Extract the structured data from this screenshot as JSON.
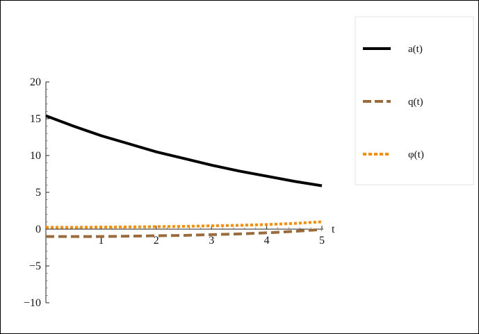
{
  "chart_data": {
    "type": "line",
    "title": "",
    "xlabel": "t",
    "ylabel": "",
    "xlim": [
      0,
      5
    ],
    "ylim": [
      -10,
      20
    ],
    "grid": false,
    "legend_position": "top-right",
    "x_ticks": [
      {
        "value": 1,
        "label": "1"
      },
      {
        "value": 2,
        "label": "2"
      },
      {
        "value": 3,
        "label": "3"
      },
      {
        "value": 4,
        "label": "4"
      },
      {
        "value": 5,
        "label": "5"
      }
    ],
    "y_ticks": [
      {
        "value": -10,
        "label": "−10"
      },
      {
        "value": -5,
        "label": "−5"
      },
      {
        "value": 0,
        "label": "0"
      },
      {
        "value": 5,
        "label": "5"
      },
      {
        "value": 10,
        "label": "10"
      },
      {
        "value": 15,
        "label": "15"
      },
      {
        "value": 20,
        "label": "20"
      }
    ],
    "series": [
      {
        "name": "a(t)",
        "color": "#000000",
        "style": "solid",
        "x": [
          0,
          0.5,
          1,
          1.5,
          2,
          2.5,
          3,
          3.5,
          4,
          4.5,
          5
        ],
        "y": [
          15.4,
          14.0,
          12.7,
          11.6,
          10.5,
          9.6,
          8.7,
          7.9,
          7.2,
          6.5,
          5.9
        ]
      },
      {
        "name": "q(t)",
        "color": "#9c6b3c",
        "style": "dashed",
        "x": [
          0,
          0.5,
          1,
          1.5,
          2,
          2.5,
          3,
          3.5,
          4,
          4.5,
          5
        ],
        "y": [
          -1.0,
          -1.0,
          -1.0,
          -0.95,
          -0.9,
          -0.85,
          -0.75,
          -0.65,
          -0.5,
          -0.3,
          -0.05
        ]
      },
      {
        "name": "φ(t)",
        "color": "#ff8c00",
        "style": "dotted",
        "x": [
          0,
          0.5,
          1,
          1.5,
          2,
          2.5,
          3,
          3.5,
          4,
          4.5,
          5
        ],
        "y": [
          0.25,
          0.25,
          0.27,
          0.3,
          0.33,
          0.38,
          0.45,
          0.52,
          0.62,
          0.78,
          1.0
        ]
      }
    ]
  }
}
